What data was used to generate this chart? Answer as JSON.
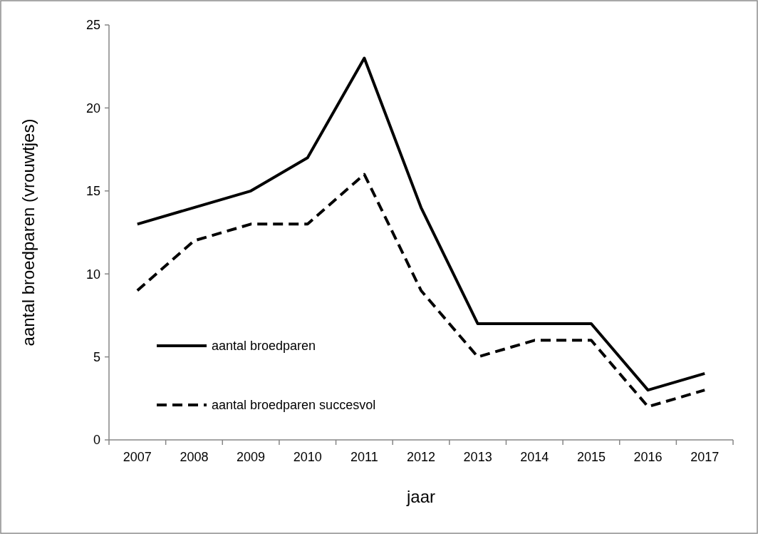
{
  "chart_data": {
    "type": "line",
    "xlabel": "jaar",
    "ylabel": "aantal broedparen (vrouwtjes)",
    "categories": [
      "2007",
      "2008",
      "2009",
      "2010",
      "2011",
      "2012",
      "2013",
      "2014",
      "2015",
      "2016",
      "2017"
    ],
    "ylim": [
      0,
      25
    ],
    "yticks": [
      0,
      5,
      10,
      15,
      20,
      25
    ],
    "grid": false,
    "legend": "bottom left",
    "marker": "none",
    "series": [
      {
        "name": "aantal broedparen",
        "color": "#000000",
        "line_style": "solid",
        "values": [
          13,
          14,
          15,
          17,
          23,
          14,
          7,
          7,
          7,
          3,
          4
        ]
      },
      {
        "name": "aantal broedparen succesvol",
        "color": "#000000",
        "line_style": "dashed",
        "values": [
          9,
          12,
          13,
          13,
          16,
          9,
          5,
          6,
          6,
          2,
          3
        ]
      }
    ]
  }
}
